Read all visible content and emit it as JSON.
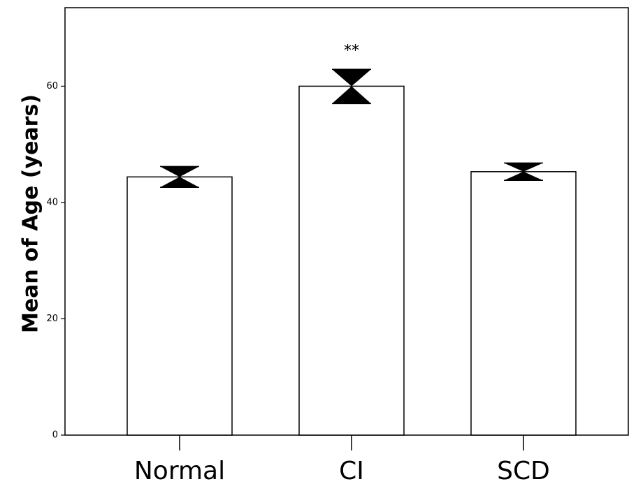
{
  "chart_data": {
    "type": "bar",
    "title": "",
    "xlabel": "",
    "ylabel": "Mean of Age (years)",
    "categories": [
      "Normal",
      "CI",
      "SCD"
    ],
    "values": [
      44.4,
      60.0,
      45.3
    ],
    "error_low": [
      42.6,
      57.0,
      43.8
    ],
    "error_high": [
      46.2,
      62.9,
      46.8
    ],
    "ylim": [
      0,
      73.5
    ],
    "yticks": [
      0,
      20,
      40,
      60
    ],
    "ytick_labels": [
      "0",
      "20",
      "40",
      "60"
    ],
    "annotations": [
      {
        "category": "CI",
        "text": "**"
      }
    ],
    "grid": false,
    "legend": "none",
    "colors": {
      "bar_fill": "#ffffff",
      "bar_stroke": "#000000",
      "error": "#000000"
    }
  }
}
